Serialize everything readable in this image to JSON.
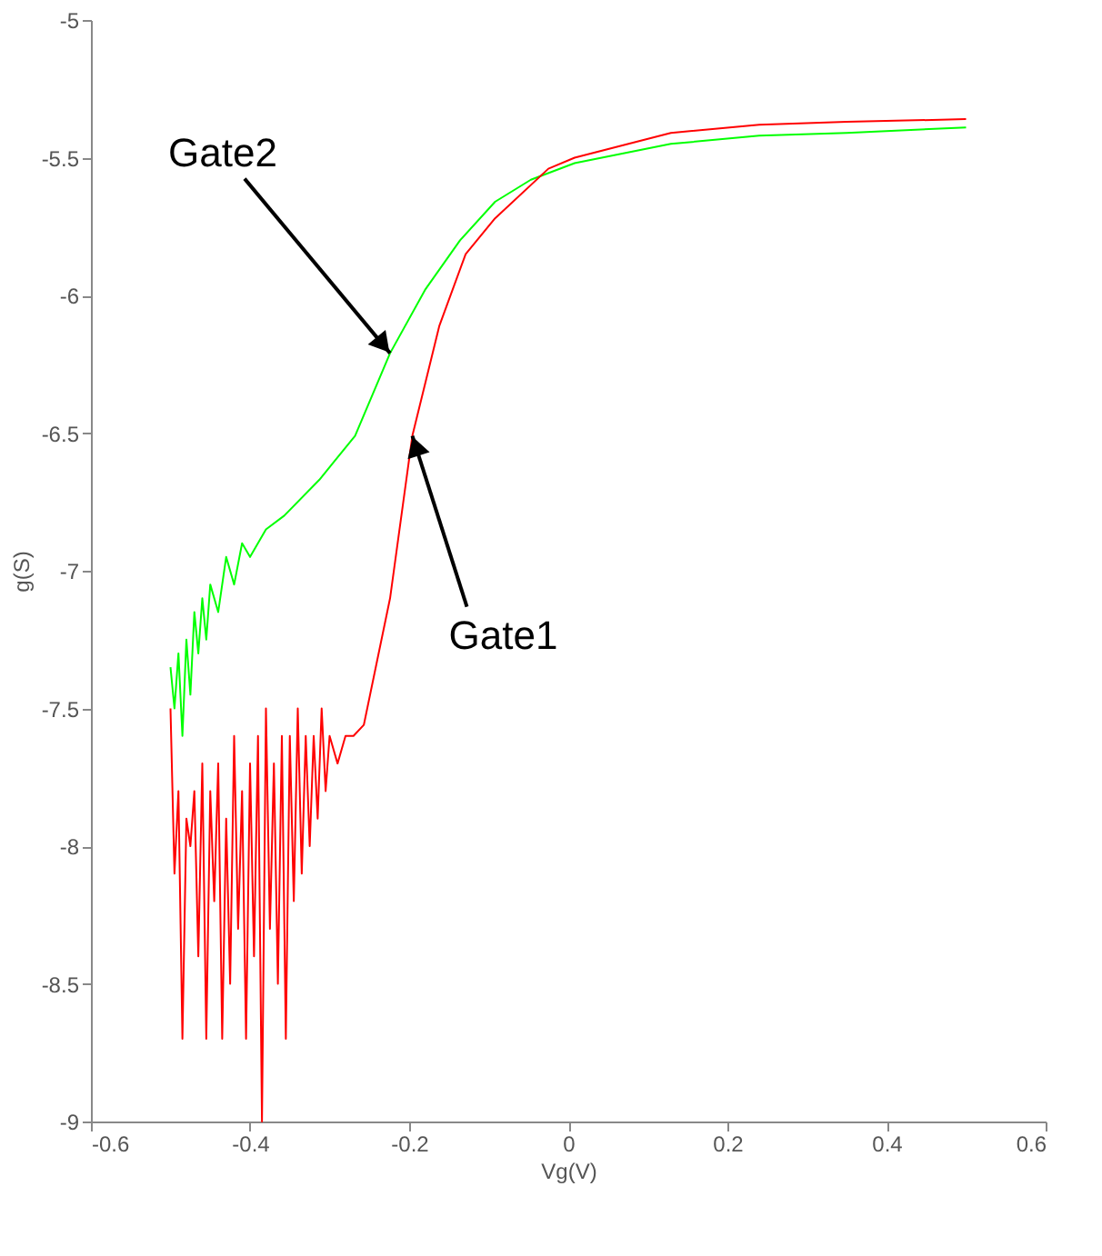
{
  "chart_data": {
    "type": "line",
    "xlabel": "Vg(V)",
    "ylabel": "g(S)",
    "xlim": [
      -0.6,
      0.6
    ],
    "xticks": [
      -0.6,
      -0.4,
      -0.2,
      0,
      0.2,
      0.4,
      0.6
    ],
    "ylim": [
      -9,
      -5
    ],
    "yticks": [
      -9,
      -8.5,
      -8,
      -7.5,
      -7,
      -6.5,
      -6,
      -5.5,
      -5
    ],
    "grid": false,
    "marker": "none",
    "line_style": "solid",
    "annotations": [
      {
        "text": "Gate2",
        "x": -0.224,
        "y": -6.21
      },
      {
        "text": "Gate1",
        "x": -0.196,
        "y": -6.51
      }
    ],
    "series": [
      {
        "color": "#00ff00",
        "x": [
          -0.5,
          -0.495,
          -0.49,
          -0.485,
          -0.48,
          -0.475,
          -0.47,
          -0.465,
          -0.46,
          -0.455,
          -0.45,
          -0.44,
          -0.43,
          -0.42,
          -0.41,
          -0.4,
          -0.38,
          -0.357,
          -0.313,
          -0.268,
          -0.224,
          -0.18,
          -0.136,
          -0.092,
          -0.047,
          0.008,
          0.129,
          0.24,
          0.35,
          0.5
        ],
        "values": [
          -7.35,
          -7.5,
          -7.3,
          -7.6,
          -7.25,
          -7.45,
          -7.15,
          -7.3,
          -7.1,
          -7.25,
          -7.05,
          -7.15,
          -6.95,
          -7.05,
          -6.9,
          -6.95,
          -6.85,
          -6.8,
          -6.67,
          -6.51,
          -6.21,
          -5.98,
          -5.8,
          -5.66,
          -5.58,
          -5.52,
          -5.45,
          -5.42,
          -5.41,
          -5.39
        ]
      },
      {
        "color": "#ff0000",
        "x": [
          -0.5,
          -0.495,
          -0.49,
          -0.485,
          -0.48,
          -0.475,
          -0.47,
          -0.465,
          -0.46,
          -0.455,
          -0.45,
          -0.445,
          -0.44,
          -0.435,
          -0.43,
          -0.425,
          -0.42,
          -0.415,
          -0.41,
          -0.405,
          -0.4,
          -0.395,
          -0.39,
          -0.385,
          -0.38,
          -0.375,
          -0.37,
          -0.365,
          -0.36,
          -0.355,
          -0.35,
          -0.345,
          -0.34,
          -0.335,
          -0.33,
          -0.325,
          -0.32,
          -0.315,
          -0.31,
          -0.305,
          -0.3,
          -0.29,
          -0.28,
          -0.27,
          -0.257,
          -0.224,
          -0.196,
          -0.162,
          -0.129,
          -0.092,
          -0.025,
          0.008,
          0.129,
          0.24,
          0.35,
          0.5
        ],
        "values": [
          -7.5,
          -8.1,
          -7.8,
          -8.7,
          -7.9,
          -8.0,
          -7.8,
          -8.4,
          -7.7,
          -8.7,
          -7.8,
          -8.2,
          -7.7,
          -8.7,
          -7.9,
          -8.5,
          -7.6,
          -8.3,
          -7.8,
          -8.7,
          -7.7,
          -8.4,
          -7.6,
          -9.0,
          -7.5,
          -8.3,
          -7.7,
          -8.5,
          -7.6,
          -8.7,
          -7.6,
          -8.2,
          -7.5,
          -8.1,
          -7.6,
          -8.0,
          -7.6,
          -7.9,
          -7.5,
          -7.8,
          -7.6,
          -7.7,
          -7.6,
          -7.6,
          -7.56,
          -7.1,
          -6.51,
          -6.11,
          -5.85,
          -5.72,
          -5.54,
          -5.5,
          -5.41,
          -5.38,
          -5.37,
          -5.36
        ]
      }
    ]
  }
}
